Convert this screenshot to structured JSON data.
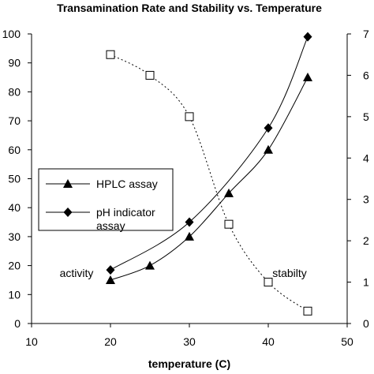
{
  "chart_data": {
    "type": "line",
    "title": "Transamination Rate and Stability vs. Temperature",
    "xlabel": "temperature (C)",
    "ylabel": "",
    "y2label": "",
    "xlim": [
      10,
      50
    ],
    "ylim": [
      0,
      100
    ],
    "y2lim": [
      0,
      7
    ],
    "x_ticks": [
      "10",
      "20",
      "30",
      "40",
      "50"
    ],
    "y_ticks": [
      "0",
      "10",
      "20",
      "30",
      "40",
      "50",
      "60",
      "70",
      "80",
      "90",
      "100"
    ],
    "y2_ticks": [
      "0",
      "1",
      "2",
      "3",
      "4",
      "5",
      "6",
      "7"
    ],
    "grid": false,
    "legend_position": "left",
    "series": [
      {
        "name": "HPLC assay",
        "axis": "left",
        "marker": "triangle",
        "line": "solid",
        "x": [
          20,
          25,
          30,
          35,
          40,
          45
        ],
        "y": [
          15,
          20,
          30,
          45,
          60,
          85
        ]
      },
      {
        "name": "pH indicator assay",
        "axis": "left",
        "marker": "diamond",
        "line": "solid",
        "x": [
          20,
          30,
          40,
          45
        ],
        "y": [
          18.5,
          35,
          67.5,
          99
        ]
      },
      {
        "name": "",
        "axis": "right",
        "marker": "open-square",
        "line": "dotted",
        "x": [
          20,
          25,
          30,
          35,
          40,
          45
        ],
        "y": [
          6.5,
          6.0,
          5.0,
          2.4,
          1.0,
          0.3
        ]
      }
    ],
    "annotations": [
      {
        "text": "activity",
        "x": 15.7,
        "y": 15
      },
      {
        "text": "stabilty",
        "x": 42.7,
        "y": 15
      }
    ]
  }
}
